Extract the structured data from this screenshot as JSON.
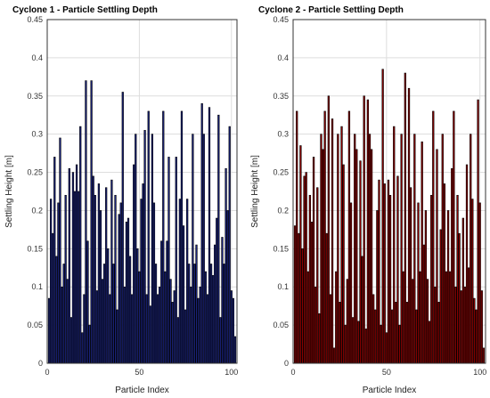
{
  "chart_data": [
    {
      "type": "bar",
      "title": "Cyclone 1 - Particle Settling Depth",
      "xlabel": "Particle Index",
      "ylabel": "Settling Height [m]",
      "xlim": [
        0,
        103
      ],
      "ylim": [
        0,
        0.45
      ],
      "xticks": [
        "0",
        "50",
        "100"
      ],
      "yticks": [
        "0",
        "0.05",
        "0.1",
        "0.15",
        "0.2",
        "0.25",
        "0.3",
        "0.35",
        "0.4",
        "0.45"
      ],
      "grid": true,
      "color": "#1a237e",
      "edge_color": "#000000",
      "x": [
        1,
        2,
        3,
        4,
        5,
        6,
        7,
        8,
        9,
        10,
        11,
        12,
        13,
        14,
        15,
        16,
        17,
        18,
        19,
        20,
        21,
        22,
        23,
        24,
        25,
        26,
        27,
        28,
        29,
        30,
        31,
        32,
        33,
        34,
        35,
        36,
        37,
        38,
        39,
        40,
        41,
        42,
        43,
        44,
        45,
        46,
        47,
        48,
        49,
        50,
        51,
        52,
        53,
        54,
        55,
        56,
        57,
        58,
        59,
        60,
        61,
        62,
        63,
        64,
        65,
        66,
        67,
        68,
        69,
        70,
        71,
        72,
        73,
        74,
        75,
        76,
        77,
        78,
        79,
        80,
        81,
        82,
        83,
        84,
        85,
        86,
        87,
        88,
        89,
        90,
        91,
        92,
        93,
        94,
        95,
        96,
        97,
        98,
        99,
        100,
        101,
        102
      ],
      "values": [
        0.085,
        0.215,
        0.17,
        0.27,
        0.14,
        0.21,
        0.295,
        0.1,
        0.13,
        0.22,
        0.11,
        0.255,
        0.06,
        0.25,
        0.225,
        0.26,
        0.225,
        0.31,
        0.04,
        0.09,
        0.37,
        0.16,
        0.05,
        0.37,
        0.245,
        0.22,
        0.095,
        0.235,
        0.2,
        0.11,
        0.13,
        0.23,
        0.15,
        0.09,
        0.24,
        0.13,
        0.22,
        0.07,
        0.195,
        0.21,
        0.355,
        0.1,
        0.185,
        0.19,
        0.14,
        0.09,
        0.26,
        0.3,
        0.15,
        0.12,
        0.215,
        0.235,
        0.305,
        0.09,
        0.33,
        0.075,
        0.3,
        0.21,
        0.13,
        0.09,
        0.1,
        0.16,
        0.33,
        0.12,
        0.16,
        0.27,
        0.11,
        0.08,
        0.095,
        0.27,
        0.06,
        0.215,
        0.33,
        0.18,
        0.07,
        0.215,
        0.13,
        0.1,
        0.3,
        0.13,
        0.155,
        0.085,
        0.1,
        0.34,
        0.3,
        0.12,
        0.09,
        0.335,
        0.13,
        0.115,
        0.155,
        0.19,
        0.325,
        0.06,
        0.165,
        0.13,
        0.255,
        0.2,
        0.31,
        0.095,
        0.085,
        0.035
      ]
    },
    {
      "type": "bar",
      "title": "Cyclone 2 - Particle Settling Depth",
      "xlabel": "Particle Index",
      "ylabel": "Settling Height [m]",
      "xlim": [
        0,
        103
      ],
      "ylim": [
        0,
        0.45
      ],
      "xticks": [
        "0",
        "50",
        "100"
      ],
      "yticks": [
        "0",
        "0.05",
        "0.1",
        "0.15",
        "0.2",
        "0.25",
        "0.3",
        "0.35",
        "0.4",
        "0.45"
      ],
      "grid": true,
      "color": "#8b0000",
      "edge_color": "#000000",
      "x": [
        1,
        2,
        3,
        4,
        5,
        6,
        7,
        8,
        9,
        10,
        11,
        12,
        13,
        14,
        15,
        16,
        17,
        18,
        19,
        20,
        21,
        22,
        23,
        24,
        25,
        26,
        27,
        28,
        29,
        30,
        31,
        32,
        33,
        34,
        35,
        36,
        37,
        38,
        39,
        40,
        41,
        42,
        43,
        44,
        45,
        46,
        47,
        48,
        49,
        50,
        51,
        52,
        53,
        54,
        55,
        56,
        57,
        58,
        59,
        60,
        61,
        62,
        63,
        64,
        65,
        66,
        67,
        68,
        69,
        70,
        71,
        72,
        73,
        74,
        75,
        76,
        77,
        78,
        79,
        80,
        81,
        82,
        83,
        84,
        85,
        86,
        87,
        88,
        89,
        90,
        91,
        92,
        93,
        94,
        95,
        96,
        97,
        98,
        99,
        100,
        101,
        102
      ],
      "values": [
        0.18,
        0.33,
        0.17,
        0.285,
        0.15,
        0.245,
        0.25,
        0.12,
        0.22,
        0.185,
        0.27,
        0.1,
        0.23,
        0.065,
        0.3,
        0.28,
        0.33,
        0.17,
        0.35,
        0.09,
        0.32,
        0.02,
        0.12,
        0.3,
        0.08,
        0.31,
        0.26,
        0.05,
        0.11,
        0.33,
        0.21,
        0.06,
        0.3,
        0.28,
        0.055,
        0.265,
        0.14,
        0.35,
        0.045,
        0.345,
        0.3,
        0.28,
        0.09,
        0.07,
        0.2,
        0.24,
        0.05,
        0.385,
        0.235,
        0.04,
        0.24,
        0.22,
        0.07,
        0.31,
        0.08,
        0.245,
        0.05,
        0.3,
        0.12,
        0.38,
        0.08,
        0.36,
        0.23,
        0.11,
        0.3,
        0.07,
        0.21,
        0.12,
        0.29,
        0.155,
        0.2,
        0.11,
        0.055,
        0.22,
        0.33,
        0.1,
        0.28,
        0.08,
        0.175,
        0.3,
        0.235,
        0.12,
        0.2,
        0.12,
        0.255,
        0.33,
        0.1,
        0.22,
        0.17,
        0.095,
        0.19,
        0.1,
        0.26,
        0.125,
        0.3,
        0.215,
        0.085,
        0.07,
        0.345,
        0.21,
        0.095,
        0.02
      ]
    }
  ]
}
